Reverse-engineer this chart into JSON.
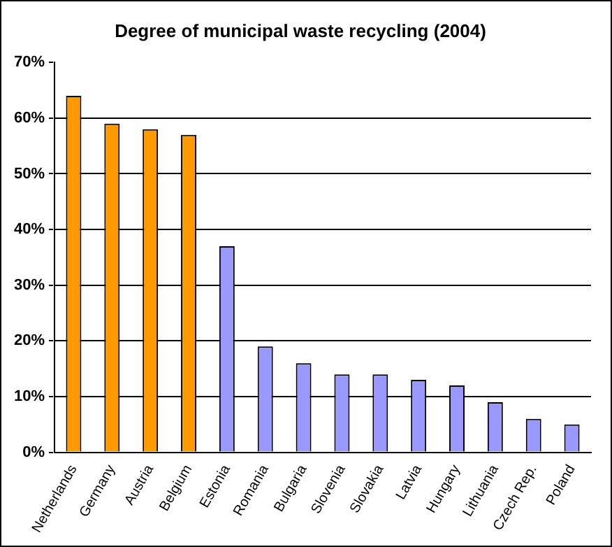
{
  "chart_data": {
    "type": "bar",
    "title": "Degree of municipal waste recycling (2004)",
    "categories": [
      "Netherlands",
      "Germany",
      "Austria",
      "Belgium",
      "Estonia",
      "Romania",
      "Bulgaria",
      "Slovenia",
      "Slovakia",
      "Latvia",
      "Hungary",
      "Lithuania",
      "Czech Rep.",
      "Poland"
    ],
    "values": [
      64,
      59,
      58,
      57,
      37,
      19,
      16,
      14,
      14,
      13,
      12,
      9,
      6,
      5
    ],
    "colors": [
      "#ff9900",
      "#ff9900",
      "#ff9900",
      "#ff9900",
      "#9999ff",
      "#9999ff",
      "#9999ff",
      "#9999ff",
      "#9999ff",
      "#9999ff",
      "#9999ff",
      "#9999ff",
      "#9999ff",
      "#9999ff"
    ],
    "ylim": [
      0,
      70
    ],
    "yticks": [
      {
        "value": 0,
        "label": "0%"
      },
      {
        "value": 10,
        "label": "10%"
      },
      {
        "value": 20,
        "label": "20%"
      },
      {
        "value": 30,
        "label": "30%"
      },
      {
        "value": 40,
        "label": "40%"
      },
      {
        "value": 50,
        "label": "50%"
      },
      {
        "value": 60,
        "label": "60%"
      },
      {
        "value": 70,
        "label": "70%"
      }
    ],
    "grid": "y",
    "legend": false
  }
}
